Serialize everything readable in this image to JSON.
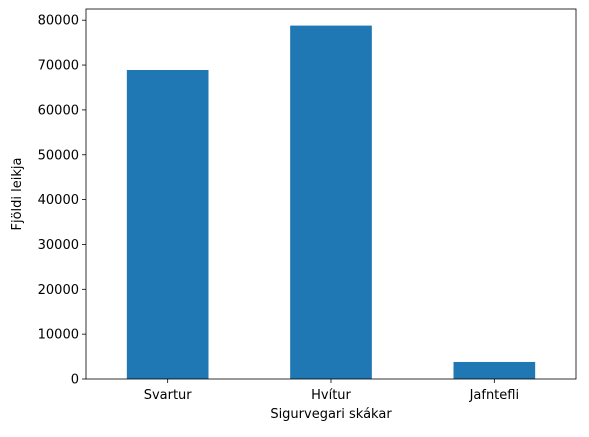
{
  "chart_data": {
    "type": "bar",
    "title": "",
    "xlabel": "Sigurvegari skákar",
    "ylabel": "Fjöldi leikja",
    "categories": [
      "Svartur",
      "Hvítur",
      "Jafntefli"
    ],
    "values": [
      68900,
      78800,
      3800
    ],
    "ylim": [
      0,
      82500
    ],
    "yticks": [
      0,
      10000,
      20000,
      30000,
      40000,
      50000,
      60000,
      70000,
      80000
    ],
    "ytick_labels": [
      "0",
      "10000",
      "20000",
      "30000",
      "40000",
      "50000",
      "60000",
      "70000",
      "80000"
    ],
    "bar_color": "#1f77b4",
    "grid": false,
    "legend": "none"
  }
}
